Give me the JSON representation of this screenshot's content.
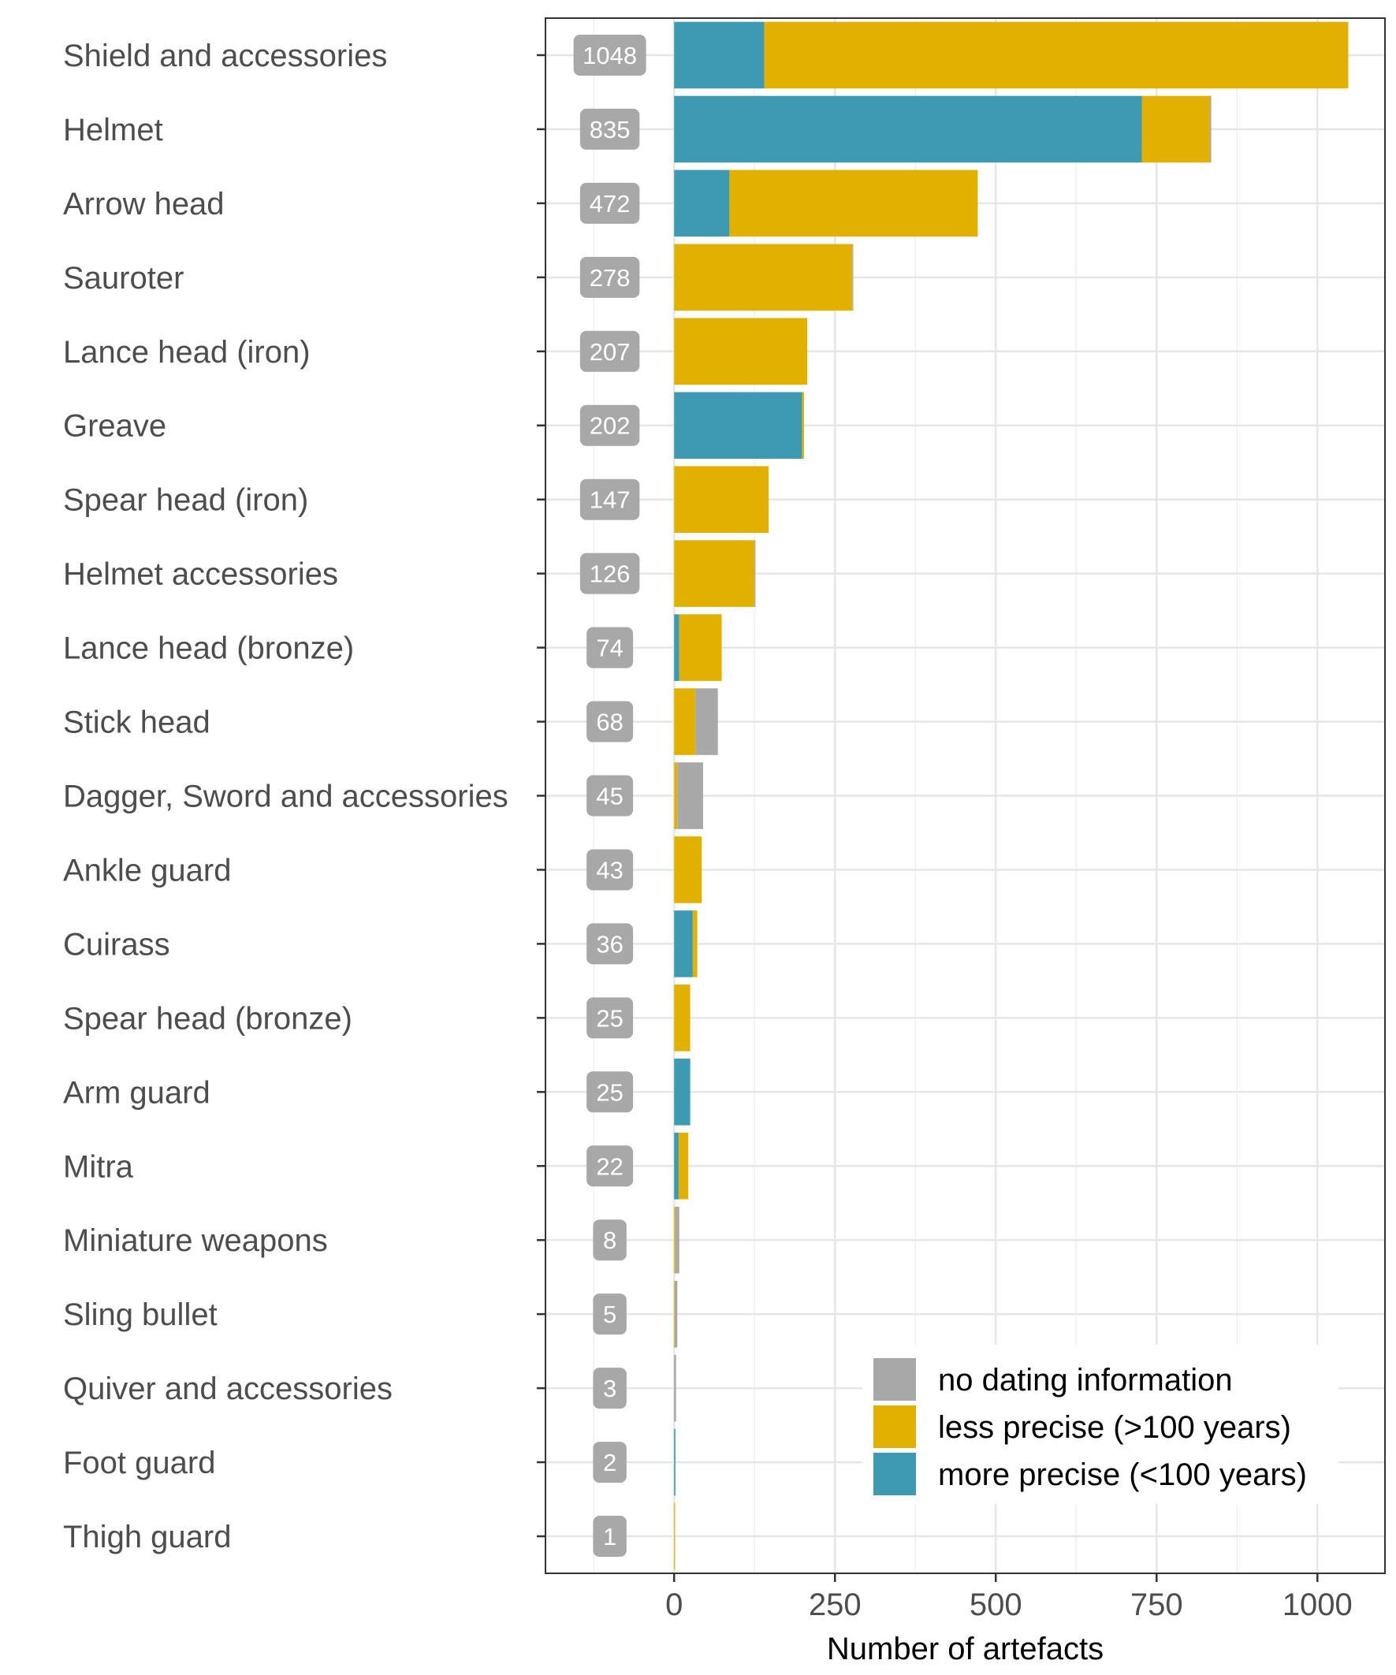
{
  "chart_data": {
    "type": "bar",
    "orientation": "horizontal",
    "stacked": true,
    "categories": [
      "Shield and accessories",
      "Helmet",
      "Arrow head",
      "Sauroter",
      "Lance head (iron)",
      "Greave",
      "Spear head (iron)",
      "Helmet accessories",
      "Lance head (bronze)",
      "Stick head",
      "Dagger, Sword and accessories",
      "Ankle guard",
      "Cuirass",
      "Spear head (bronze)",
      "Arm guard",
      "Mitra",
      "Miniature weapons",
      "Sling bullet",
      "Quiver and accessories",
      "Foot guard",
      "Thigh guard"
    ],
    "totals": [
      1048,
      835,
      472,
      278,
      207,
      202,
      147,
      126,
      74,
      68,
      45,
      43,
      36,
      25,
      25,
      22,
      8,
      5,
      3,
      2,
      1
    ],
    "series": [
      {
        "name": "more precise (<100 years)",
        "color": "#3d9ab2",
        "values": [
          140,
          727,
          86,
          0,
          0,
          199,
          0,
          0,
          8,
          0,
          0,
          0,
          29,
          0,
          25,
          7,
          0,
          0,
          0,
          2,
          0
        ]
      },
      {
        "name": "less precise (>100 years)",
        "color": "#e1b000",
        "values": [
          908,
          106,
          386,
          277,
          207,
          3,
          147,
          125,
          66,
          33,
          5,
          43,
          7,
          25,
          0,
          15,
          2,
          1,
          0,
          0,
          1
        ]
      },
      {
        "name": "no dating information",
        "color": "#a8a8a8",
        "values": [
          0,
          2,
          0,
          1,
          0,
          0,
          0,
          1,
          0,
          35,
          40,
          0,
          0,
          0,
          0,
          0,
          6,
          4,
          3,
          0,
          0
        ]
      }
    ],
    "legend": [
      {
        "name": "no dating information",
        "color": "#a8a8a8"
      },
      {
        "name": "less precise (>100 years)",
        "color": "#e1b000"
      },
      {
        "name": "more precise (<100 years)",
        "color": "#3d9ab2"
      }
    ],
    "legend_position": "bottom-right",
    "xlabel": "Number of artefacts",
    "ylabel": "",
    "xlim": [
      -200,
      1105
    ],
    "xticks": [
      0,
      250,
      500,
      750,
      1000
    ],
    "xtick_labels": [
      "0",
      "250",
      "500",
      "750",
      "1000"
    ],
    "grid": true,
    "total_label_x": -100,
    "total_label_color": "#a8a8a8"
  }
}
